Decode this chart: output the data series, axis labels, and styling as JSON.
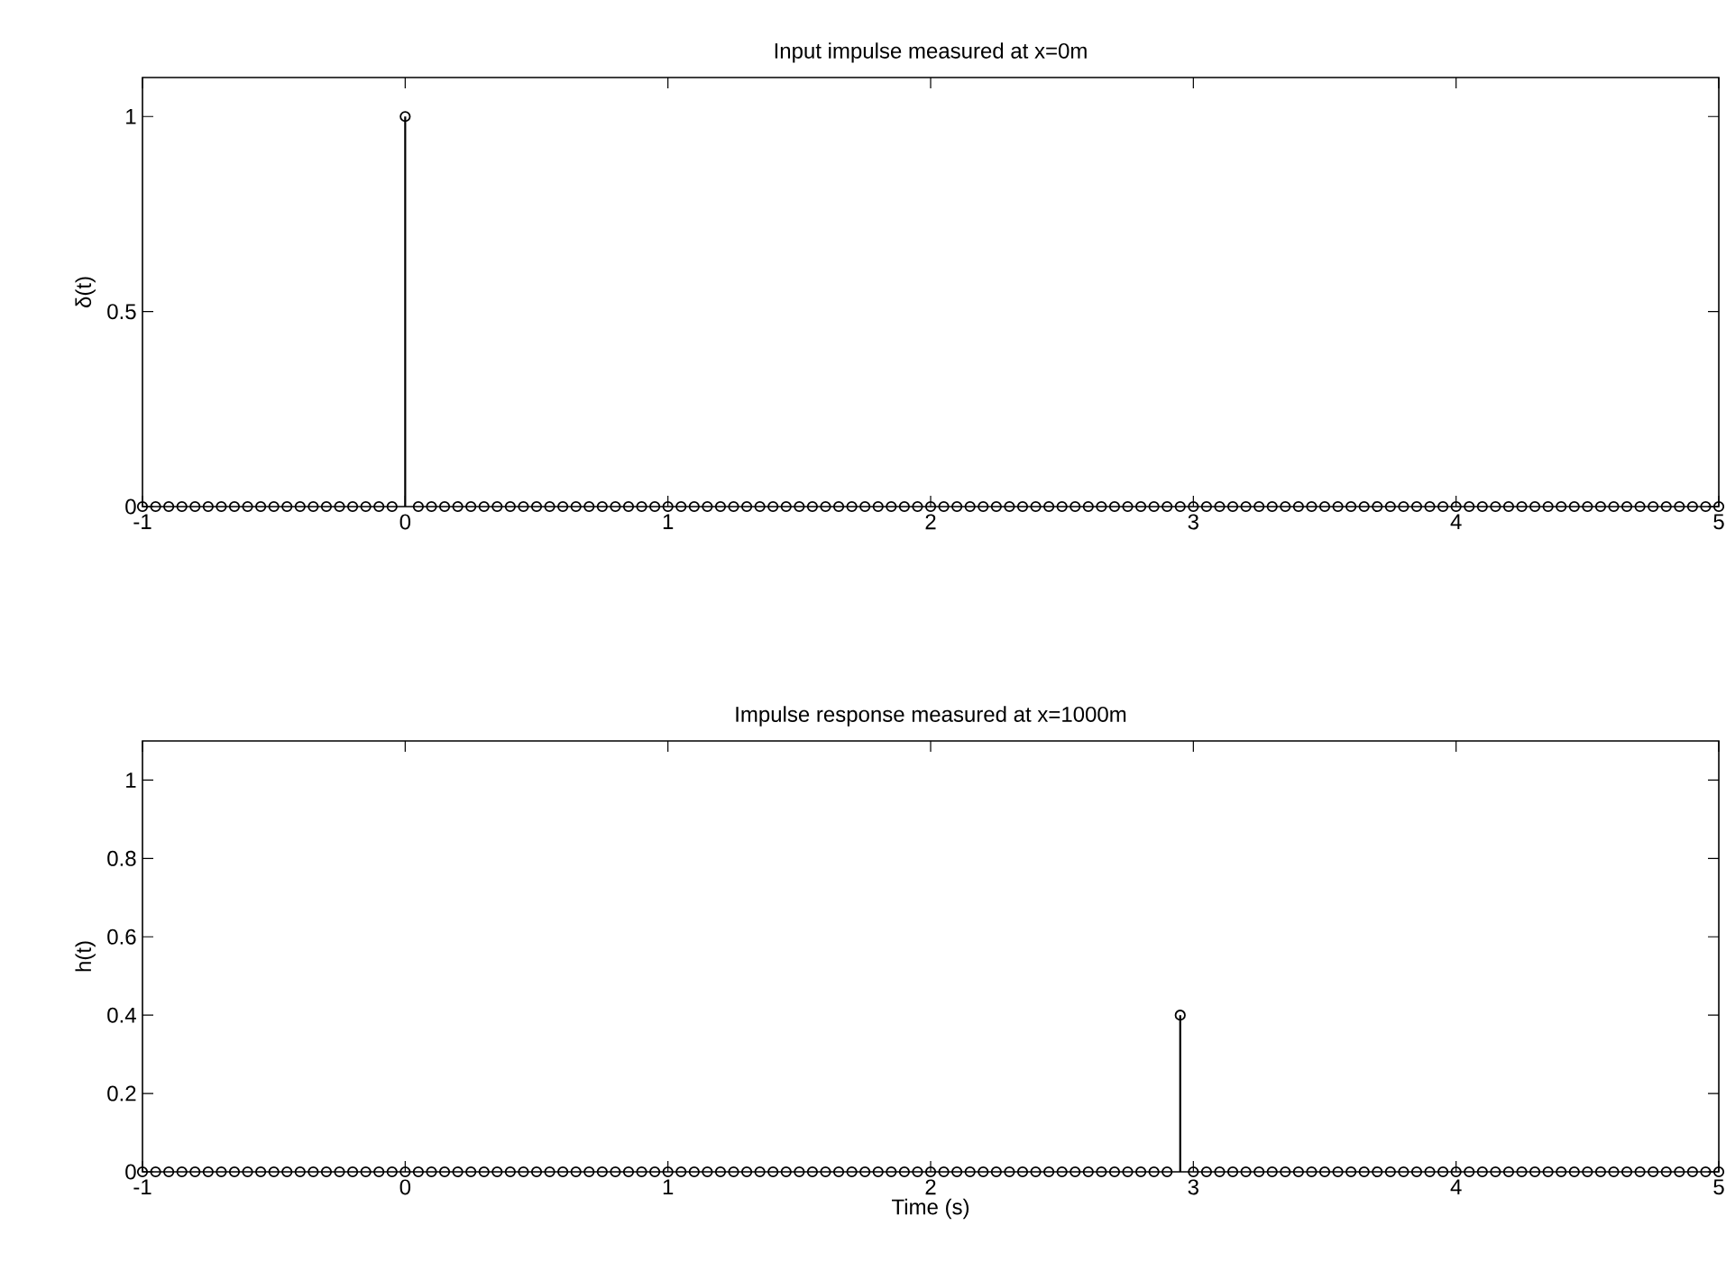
{
  "chart_data": [
    {
      "type": "lollipop",
      "title": "Input impulse measured at x=0m",
      "ylabel": "δ(t)",
      "marker": "circle",
      "xlim": [
        -1,
        5
      ],
      "xticks": [
        -1,
        0,
        1,
        2,
        3,
        4,
        5
      ],
      "ylim": [
        0,
        1.1
      ],
      "yticks": [
        0,
        0.5,
        1
      ],
      "x": [
        -1,
        -0.95,
        -0.9,
        -0.85,
        -0.8,
        -0.75,
        -0.7,
        -0.65,
        -0.6,
        -0.55,
        -0.5,
        -0.45,
        -0.4,
        -0.35,
        -0.3,
        -0.25,
        -0.2,
        -0.15,
        -0.1,
        -0.05,
        0,
        0.05,
        0.1,
        0.15,
        0.2,
        0.25,
        0.3,
        0.35,
        0.4,
        0.45,
        0.5,
        0.55,
        0.6,
        0.65,
        0.7,
        0.75,
        0.8,
        0.85,
        0.9,
        0.95,
        1,
        1.05,
        1.1,
        1.15,
        1.2,
        1.25,
        1.3,
        1.35,
        1.4,
        1.45,
        1.5,
        1.55,
        1.6,
        1.65,
        1.7,
        1.75,
        1.8,
        1.85,
        1.9,
        1.95,
        2,
        2.05,
        2.1,
        2.15,
        2.2,
        2.25,
        2.3,
        2.35,
        2.4,
        2.45,
        2.5,
        2.55,
        2.6,
        2.65,
        2.7,
        2.75,
        2.8,
        2.85,
        2.9,
        2.95,
        3,
        3.05,
        3.1,
        3.15,
        3.2,
        3.25,
        3.3,
        3.35,
        3.4,
        3.45,
        3.5,
        3.55,
        3.6,
        3.65,
        3.7,
        3.75,
        3.8,
        3.85,
        3.9,
        3.95,
        4,
        4.05,
        4.1,
        4.15,
        4.2,
        4.25,
        4.3,
        4.35,
        4.4,
        4.45,
        4.5,
        4.55,
        4.6,
        4.65,
        4.7,
        4.75,
        4.8,
        4.85,
        4.9,
        4.95,
        5
      ],
      "series": [
        {
          "color": "#000000",
          "values": [
            0,
            0,
            0,
            0,
            0,
            0,
            0,
            0,
            0,
            0,
            0,
            0,
            0,
            0,
            0,
            0,
            0,
            0,
            0,
            0,
            1,
            0,
            0,
            0,
            0,
            0,
            0,
            0,
            0,
            0,
            0,
            0,
            0,
            0,
            0,
            0,
            0,
            0,
            0,
            0,
            0,
            0,
            0,
            0,
            0,
            0,
            0,
            0,
            0,
            0,
            0,
            0,
            0,
            0,
            0,
            0,
            0,
            0,
            0,
            0,
            0,
            0,
            0,
            0,
            0,
            0,
            0,
            0,
            0,
            0,
            0,
            0,
            0,
            0,
            0,
            0,
            0,
            0,
            0,
            0,
            0,
            0,
            0,
            0,
            0,
            0,
            0,
            0,
            0,
            0,
            0,
            0,
            0,
            0,
            0,
            0,
            0,
            0,
            0,
            0,
            0,
            0,
            0,
            0,
            0,
            0,
            0,
            0,
            0,
            0,
            0,
            0,
            0,
            0,
            0,
            0,
            0,
            0,
            0,
            0,
            0
          ]
        }
      ]
    },
    {
      "type": "lollipop",
      "title": "Impulse response measured at x=1000m",
      "xlabel": "Time (s)",
      "ylabel": "h(t)",
      "marker": "circle",
      "xlim": [
        -1,
        5
      ],
      "xticks": [
        -1,
        0,
        1,
        2,
        3,
        4,
        5
      ],
      "ylim": [
        0,
        1.1
      ],
      "yticks": [
        0,
        0.2,
        0.4,
        0.6,
        0.8,
        1
      ],
      "x": [
        -1,
        -0.95,
        -0.9,
        -0.85,
        -0.8,
        -0.75,
        -0.7,
        -0.65,
        -0.6,
        -0.55,
        -0.5,
        -0.45,
        -0.4,
        -0.35,
        -0.3,
        -0.25,
        -0.2,
        -0.15,
        -0.1,
        -0.05,
        0,
        0.05,
        0.1,
        0.15,
        0.2,
        0.25,
        0.3,
        0.35,
        0.4,
        0.45,
        0.5,
        0.55,
        0.6,
        0.65,
        0.7,
        0.75,
        0.8,
        0.85,
        0.9,
        0.95,
        1,
        1.05,
        1.1,
        1.15,
        1.2,
        1.25,
        1.3,
        1.35,
        1.4,
        1.45,
        1.5,
        1.55,
        1.6,
        1.65,
        1.7,
        1.75,
        1.8,
        1.85,
        1.9,
        1.95,
        2,
        2.05,
        2.1,
        2.15,
        2.2,
        2.25,
        2.3,
        2.35,
        2.4,
        2.45,
        2.5,
        2.55,
        2.6,
        2.65,
        2.7,
        2.75,
        2.8,
        2.85,
        2.9,
        2.95,
        3,
        3.05,
        3.1,
        3.15,
        3.2,
        3.25,
        3.3,
        3.35,
        3.4,
        3.45,
        3.5,
        3.55,
        3.6,
        3.65,
        3.7,
        3.75,
        3.8,
        3.85,
        3.9,
        3.95,
        4,
        4.05,
        4.1,
        4.15,
        4.2,
        4.25,
        4.3,
        4.35,
        4.4,
        4.45,
        4.5,
        4.55,
        4.6,
        4.65,
        4.7,
        4.75,
        4.8,
        4.85,
        4.9,
        4.95,
        5
      ],
      "series": [
        {
          "color": "#000000",
          "values": [
            0,
            0,
            0,
            0,
            0,
            0,
            0,
            0,
            0,
            0,
            0,
            0,
            0,
            0,
            0,
            0,
            0,
            0,
            0,
            0,
            0,
            0,
            0,
            0,
            0,
            0,
            0,
            0,
            0,
            0,
            0,
            0,
            0,
            0,
            0,
            0,
            0,
            0,
            0,
            0,
            0,
            0,
            0,
            0,
            0,
            0,
            0,
            0,
            0,
            0,
            0,
            0,
            0,
            0,
            0,
            0,
            0,
            0,
            0,
            0,
            0,
            0,
            0,
            0,
            0,
            0,
            0,
            0,
            0,
            0,
            0,
            0,
            0,
            0,
            0,
            0,
            0,
            0,
            0,
            0.4,
            0,
            0,
            0,
            0,
            0,
            0,
            0,
            0,
            0,
            0,
            0,
            0,
            0,
            0,
            0,
            0,
            0,
            0,
            0,
            0,
            0,
            0,
            0,
            0,
            0,
            0,
            0,
            0,
            0,
            0,
            0,
            0,
            0,
            0,
            0,
            0,
            0,
            0,
            0,
            0,
            0
          ]
        }
      ]
    }
  ]
}
